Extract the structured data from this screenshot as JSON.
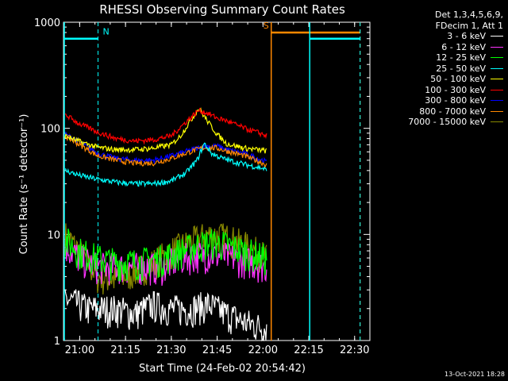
{
  "chart_data": {
    "type": "line",
    "title": "RHESSI Observing Summary Count Rates",
    "xlabel": "Start Time (24-Feb-02 20:54:42)",
    "ylabel": "Count Rate (s⁻¹ detector⁻¹)",
    "xlim": [
      20.9117,
      22.5833
    ],
    "ylim": [
      1,
      1000
    ],
    "yscale": "log",
    "x_ticks": [
      {
        "t": 21.0,
        "label": "21:00"
      },
      {
        "t": 21.25,
        "label": "21:15"
      },
      {
        "t": 21.5,
        "label": "21:30"
      },
      {
        "t": 21.75,
        "label": "21:45"
      },
      {
        "t": 22.0,
        "label": "22:00"
      },
      {
        "t": 22.25,
        "label": "22:15"
      },
      {
        "t": 22.5,
        "label": "22:30"
      }
    ],
    "y_ticks": [
      {
        "v": 1,
        "label": "1"
      },
      {
        "v": 10,
        "label": "10"
      },
      {
        "v": 100,
        "label": "100"
      },
      {
        "v": 1000,
        "label": "1000"
      }
    ],
    "legend_header": [
      "Det 1,3,4,5,6,9,",
      "FDecim 1, Att 1"
    ],
    "series": [
      {
        "name": "3 - 6 keV",
        "color": "#ffffff",
        "points": [
          [
            20.92,
            2.5
          ],
          [
            21.05,
            2.0
          ],
          [
            21.2,
            2.0
          ],
          [
            21.3,
            1.8
          ],
          [
            21.4,
            2.2
          ],
          [
            21.5,
            2.0
          ],
          [
            21.6,
            2.0
          ],
          [
            21.7,
            2.2
          ],
          [
            21.8,
            1.8
          ],
          [
            21.9,
            1.5
          ],
          [
            22.02,
            1.3
          ]
        ]
      },
      {
        "name": "6 - 12 keV",
        "color": "#ff33ff",
        "points": [
          [
            20.92,
            8.0
          ],
          [
            21.0,
            6.0
          ],
          [
            21.1,
            5.0
          ],
          [
            21.2,
            5.0
          ],
          [
            21.3,
            5.0
          ],
          [
            21.45,
            5.0
          ],
          [
            21.55,
            6.0
          ],
          [
            21.65,
            6.5
          ],
          [
            21.75,
            6.5
          ],
          [
            21.85,
            6.0
          ],
          [
            21.95,
            5.5
          ],
          [
            22.02,
            5.0
          ]
        ]
      },
      {
        "name": "12 - 25 keV",
        "color": "#00ff00",
        "points": [
          [
            20.92,
            9.0
          ],
          [
            21.0,
            7.0
          ],
          [
            21.1,
            6.0
          ],
          [
            21.2,
            5.5
          ],
          [
            21.3,
            5.5
          ],
          [
            21.45,
            6.0
          ],
          [
            21.55,
            7.0
          ],
          [
            21.65,
            8.0
          ],
          [
            21.72,
            8.5
          ],
          [
            21.8,
            8.0
          ],
          [
            21.9,
            7.0
          ],
          [
            22.02,
            6.0
          ]
        ]
      },
      {
        "name": "25 - 50 keV",
        "color": "#00ffff",
        "points": [
          [
            20.92,
            40
          ],
          [
            21.0,
            36
          ],
          [
            21.1,
            33
          ],
          [
            21.2,
            31
          ],
          [
            21.3,
            30
          ],
          [
            21.4,
            30
          ],
          [
            21.5,
            32
          ],
          [
            21.58,
            38
          ],
          [
            21.64,
            50
          ],
          [
            21.68,
            72
          ],
          [
            21.72,
            58
          ],
          [
            21.78,
            52
          ],
          [
            21.85,
            48
          ],
          [
            21.92,
            45
          ],
          [
            22.0,
            42
          ],
          [
            22.02,
            40
          ]
        ]
      },
      {
        "name": "50 - 100 keV",
        "color": "#ffff00",
        "points": [
          [
            20.92,
            85
          ],
          [
            21.0,
            75
          ],
          [
            21.1,
            66
          ],
          [
            21.2,
            63
          ],
          [
            21.3,
            63
          ],
          [
            21.4,
            65
          ],
          [
            21.5,
            70
          ],
          [
            21.55,
            85
          ],
          [
            21.6,
            115
          ],
          [
            21.65,
            155
          ],
          [
            21.7,
            115
          ],
          [
            21.75,
            88
          ],
          [
            21.8,
            72
          ],
          [
            21.9,
            65
          ],
          [
            22.0,
            62
          ],
          [
            22.02,
            61
          ]
        ]
      },
      {
        "name": "100 - 300 keV",
        "color": "#ff0000",
        "points": [
          [
            20.92,
            135
          ],
          [
            21.0,
            110
          ],
          [
            21.1,
            92
          ],
          [
            21.2,
            80
          ],
          [
            21.3,
            76
          ],
          [
            21.4,
            78
          ],
          [
            21.5,
            85
          ],
          [
            21.58,
            115
          ],
          [
            21.65,
            148
          ],
          [
            21.7,
            138
          ],
          [
            21.75,
            125
          ],
          [
            21.8,
            118
          ],
          [
            21.9,
            100
          ],
          [
            22.0,
            88
          ],
          [
            22.02,
            85
          ]
        ]
      },
      {
        "name": "300 - 800 keV",
        "color": "#0000ff",
        "points": [
          [
            20.92,
            88
          ],
          [
            21.0,
            74
          ],
          [
            21.1,
            58
          ],
          [
            21.2,
            52
          ],
          [
            21.3,
            50
          ],
          [
            21.4,
            50
          ],
          [
            21.5,
            55
          ],
          [
            21.6,
            62
          ],
          [
            21.68,
            68
          ],
          [
            21.75,
            68
          ],
          [
            21.82,
            62
          ],
          [
            21.9,
            58
          ],
          [
            22.0,
            50
          ],
          [
            22.02,
            48
          ]
        ]
      },
      {
        "name": "800 - 7000 keV",
        "color": "#ff8800",
        "points": [
          [
            20.92,
            85
          ],
          [
            21.0,
            70
          ],
          [
            21.1,
            55
          ],
          [
            21.2,
            50
          ],
          [
            21.3,
            47
          ],
          [
            21.4,
            47
          ],
          [
            21.5,
            52
          ],
          [
            21.6,
            60
          ],
          [
            21.68,
            66
          ],
          [
            21.75,
            65
          ],
          [
            21.82,
            60
          ],
          [
            21.9,
            55
          ],
          [
            22.0,
            47
          ],
          [
            22.02,
            45
          ]
        ]
      },
      {
        "name": "7000 - 15000 keV",
        "color": "#888800",
        "points": [
          [
            20.92,
            10
          ],
          [
            21.0,
            7.0
          ],
          [
            21.1,
            4.0
          ],
          [
            21.2,
            3.8
          ],
          [
            21.3,
            4.5
          ],
          [
            21.4,
            5.5
          ],
          [
            21.5,
            7.0
          ],
          [
            21.6,
            8.5
          ],
          [
            21.7,
            10
          ],
          [
            21.8,
            9.5
          ],
          [
            21.9,
            8.0
          ],
          [
            22.0,
            6.5
          ],
          [
            22.02,
            6.0
          ]
        ]
      }
    ],
    "flags": [
      {
        "label": "N",
        "color": "#00ffff",
        "level": 700,
        "dash_t": 21.1,
        "from_t": 20.9117,
        "to_t": 21.1,
        "solid_t": null
      },
      {
        "label": "S",
        "color": "#ff8800",
        "level": 800,
        "dash_t": 22.53,
        "from_t": 22.045,
        "to_t": 22.53,
        "solid_t": 22.045
      },
      {
        "label": "",
        "color": "#00ffff",
        "level": 700,
        "dash_t": 22.53,
        "from_t": 22.255,
        "to_t": 22.53,
        "solid_t": 22.255
      }
    ]
  },
  "timestamp": "13-Oct-2021 18:28"
}
